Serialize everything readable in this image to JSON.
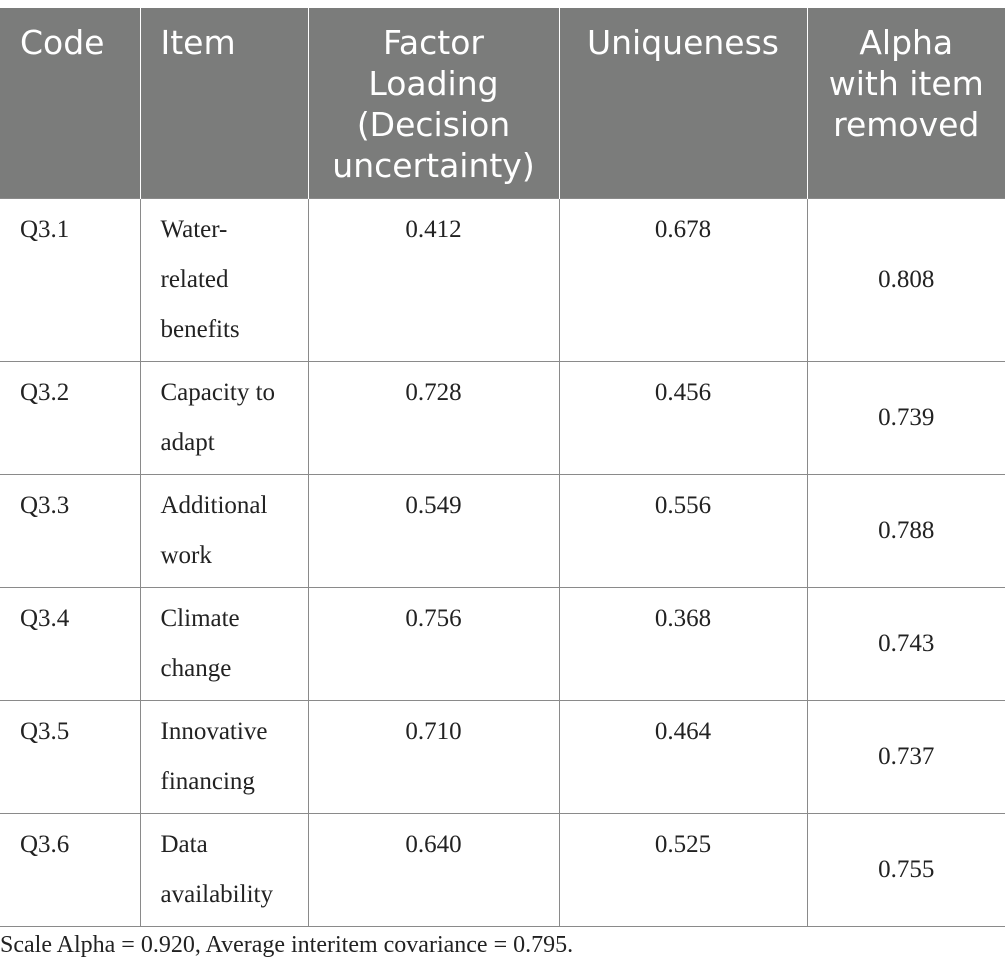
{
  "table": {
    "headers": [
      "Code",
      "Item",
      "Factor Loading (Decision uncertainty)",
      "Uniqueness",
      "Alpha with item removed"
    ],
    "rows": [
      {
        "code": "Q3.1",
        "item": "Water-related benefits",
        "factor_loading": "0.412",
        "uniqueness": "0.678",
        "alpha_removed": "0.808"
      },
      {
        "code": "Q3.2",
        "item": "Capacity to adapt",
        "factor_loading": "0.728",
        "uniqueness": "0.456",
        "alpha_removed": "0.739"
      },
      {
        "code": "Q3.3",
        "item": "Additional work",
        "factor_loading": "0.549",
        "uniqueness": "0.556",
        "alpha_removed": "0.788"
      },
      {
        "code": "Q3.4",
        "item": "Climate change",
        "factor_loading": "0.756",
        "uniqueness": "0.368",
        "alpha_removed": "0.743"
      },
      {
        "code": "Q3.5",
        "item": "Innovative financing",
        "factor_loading": "0.710",
        "uniqueness": "0.464",
        "alpha_removed": "0.737"
      },
      {
        "code": "Q3.6",
        "item": "Data availability",
        "factor_loading": "0.640",
        "uniqueness": "0.525",
        "alpha_removed": "0.755"
      }
    ]
  },
  "footnote": "Scale Alpha = 0.920, Average interitem covariance = 0.795."
}
